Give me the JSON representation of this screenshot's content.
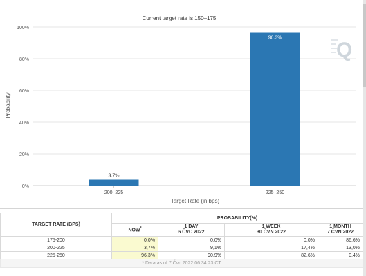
{
  "colors": {
    "bar": "#2b77b3",
    "accent_now": "#fafad0",
    "grid": "#e6e6e6"
  },
  "chart_data": {
    "type": "bar",
    "title": "Current target rate is 150–175",
    "xlabel": "Target Rate (in bps)",
    "ylabel": "Probability",
    "categories": [
      "200–225",
      "225–250"
    ],
    "values": [
      3.7,
      96.3
    ],
    "data_labels": [
      "3.7%",
      "96.3%"
    ],
    "yticks": [
      "0%",
      "20%",
      "40%",
      "60%",
      "80%",
      "100%"
    ],
    "ylim": [
      0,
      100
    ],
    "grid": true,
    "legend": "none"
  },
  "watermark_icon": "q-watermark-icon",
  "table": {
    "col_rate_header": "TARGET RATE (BPS)",
    "group_header": "PROBABILITY(%)",
    "now_label": "NOW",
    "now_marker": "*",
    "columns": [
      {
        "line1": "1 DAY",
        "line2": "6 ČVC 2022"
      },
      {
        "line1": "1 WEEK",
        "line2": "30 ČVN 2022"
      },
      {
        "line1": "1 MONTH",
        "line2": "7 ČVN 2022"
      }
    ],
    "rows": [
      {
        "rate": "175-200",
        "now": "0,0%",
        "d1": "0,0%",
        "w1": "0,0%",
        "m1": "86,6%"
      },
      {
        "rate": "200-225",
        "now": "3,7%",
        "d1": "9,1%",
        "w1": "17,4%",
        "m1": "13,0%"
      },
      {
        "rate": "225-250",
        "now": "96,3%",
        "d1": "90,9%",
        "w1": "82,6%",
        "m1": "0,4%"
      }
    ],
    "footnote": "* Data as of 7 Čvc 2022 06:34:23 CT"
  }
}
